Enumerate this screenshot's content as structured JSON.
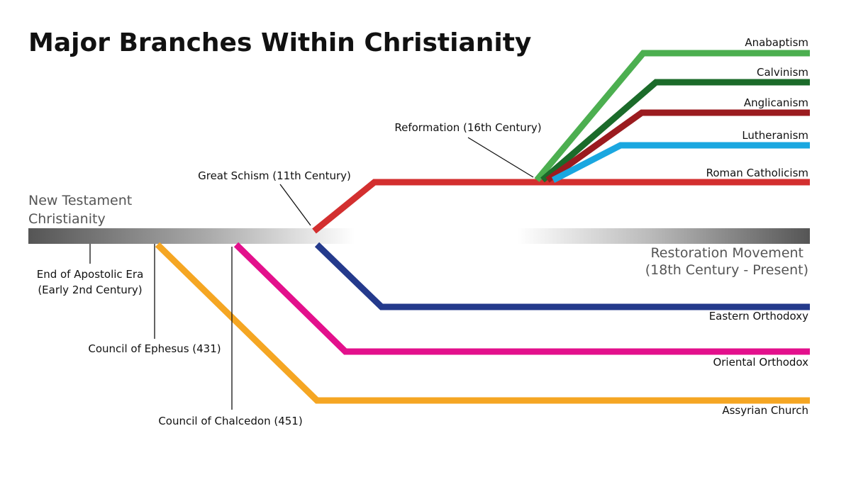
{
  "title": "Major Branches Within Christianity",
  "origin": {
    "lines": [
      "New Testament",
      "Christianity"
    ]
  },
  "restoration": {
    "lines": [
      "Restoration Movement",
      "(18th Century - Present)"
    ]
  },
  "events": [
    {
      "lines": [
        "End of Apostolic Era",
        "(Early 2nd Century)"
      ]
    },
    {
      "lines": [
        "Council of Ephesus (431)"
      ]
    },
    {
      "lines": [
        "Council of Chalcedon (451)"
      ]
    },
    {
      "lines": [
        "Great Schism (11th Century)"
      ]
    },
    {
      "lines": [
        "Reformation (16th Century)"
      ]
    }
  ],
  "branches": [
    {
      "name": "Anabaptism",
      "color": "#4caf50"
    },
    {
      "name": "Calvinism",
      "color": "#1b6b2a"
    },
    {
      "name": "Anglicanism",
      "color": "#9b1b1f"
    },
    {
      "name": "Lutheranism",
      "color": "#1aa7e0"
    },
    {
      "name": "Roman Catholicism",
      "color": "#d32f2f"
    },
    {
      "name": "Eastern Orthodoxy",
      "color": "#243a8c"
    },
    {
      "name": "Oriental Orthodox",
      "color": "#e3108c"
    },
    {
      "name": "Assyrian Church",
      "color": "#f5a623"
    }
  ]
}
